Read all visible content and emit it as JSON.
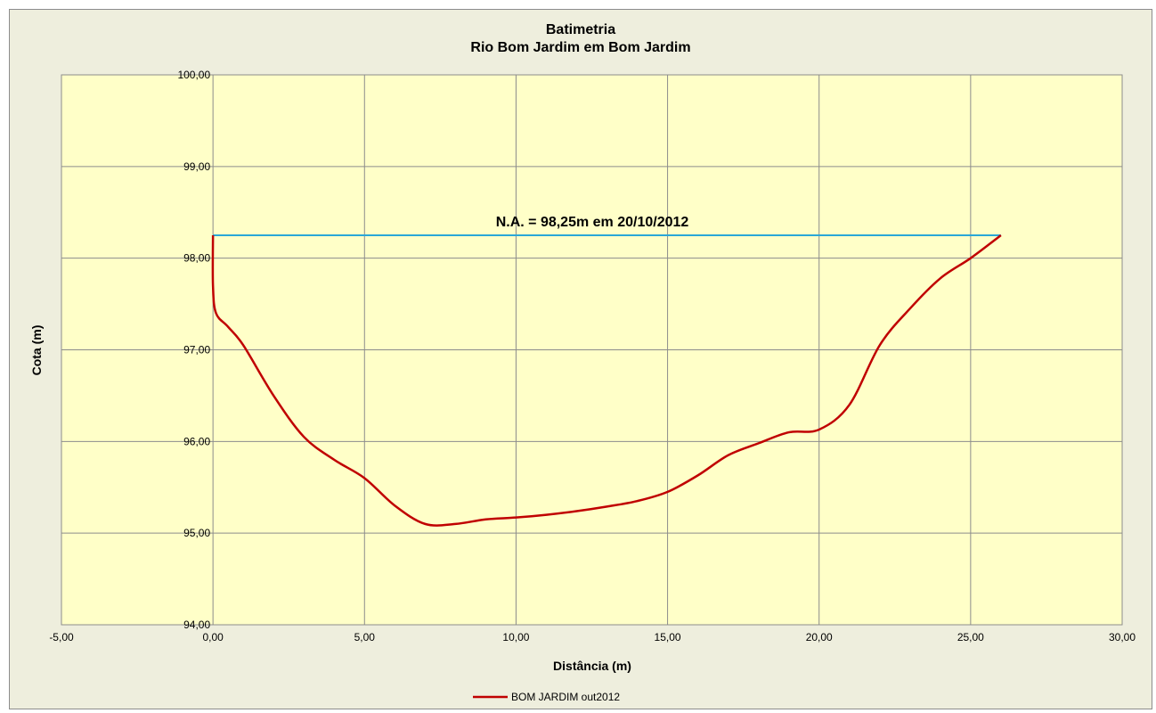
{
  "chart_data": {
    "type": "line",
    "title": "Batimetria",
    "subtitle": "Rio Bom Jardim em Bom Jardim",
    "xlabel": "Distância (m)",
    "ylabel": "Cota (m)",
    "xlim": [
      -5,
      30
    ],
    "ylim": [
      94,
      100
    ],
    "x_ticks": [
      -5,
      0,
      5,
      10,
      15,
      20,
      25,
      30
    ],
    "x_tick_labels": [
      "-5,00",
      "0,00",
      "5,00",
      "10,00",
      "15,00",
      "20,00",
      "25,00",
      "30,00"
    ],
    "y_ticks": [
      94,
      95,
      96,
      97,
      98,
      99,
      100
    ],
    "y_tick_labels": [
      "94,00",
      "95,00",
      "96,00",
      "97,00",
      "98,00",
      "99,00",
      "100,00"
    ],
    "grid": true,
    "legend_position": "bottom",
    "colors": {
      "plot_background": "#ffffc8",
      "chart_background": "#eeeedd",
      "series": "#c00000",
      "water_level": "#2aa7d7",
      "grid": "#8c8c8c"
    },
    "series": [
      {
        "name": "BOM JARDIM out2012",
        "x": [
          0,
          0,
          0.1,
          0.5,
          1,
          2,
          3,
          4,
          5,
          6,
          7,
          8,
          9,
          10,
          11,
          12,
          13,
          14,
          15,
          16,
          17,
          18,
          19,
          20,
          21,
          22,
          23,
          24,
          25,
          26
        ],
        "y": [
          98.25,
          97.7,
          97.4,
          97.25,
          97.05,
          96.5,
          96.05,
          95.8,
          95.6,
          95.3,
          95.1,
          95.1,
          95.15,
          95.17,
          95.2,
          95.24,
          95.29,
          95.35,
          95.45,
          95.63,
          95.85,
          95.98,
          96.1,
          96.13,
          96.4,
          97.05,
          97.45,
          97.78,
          98.0,
          98.25
        ]
      }
    ],
    "water_level": {
      "x": [
        0,
        26
      ],
      "y": 98.25,
      "label": "N.A. = 98,25m em  20/10/2012"
    }
  }
}
